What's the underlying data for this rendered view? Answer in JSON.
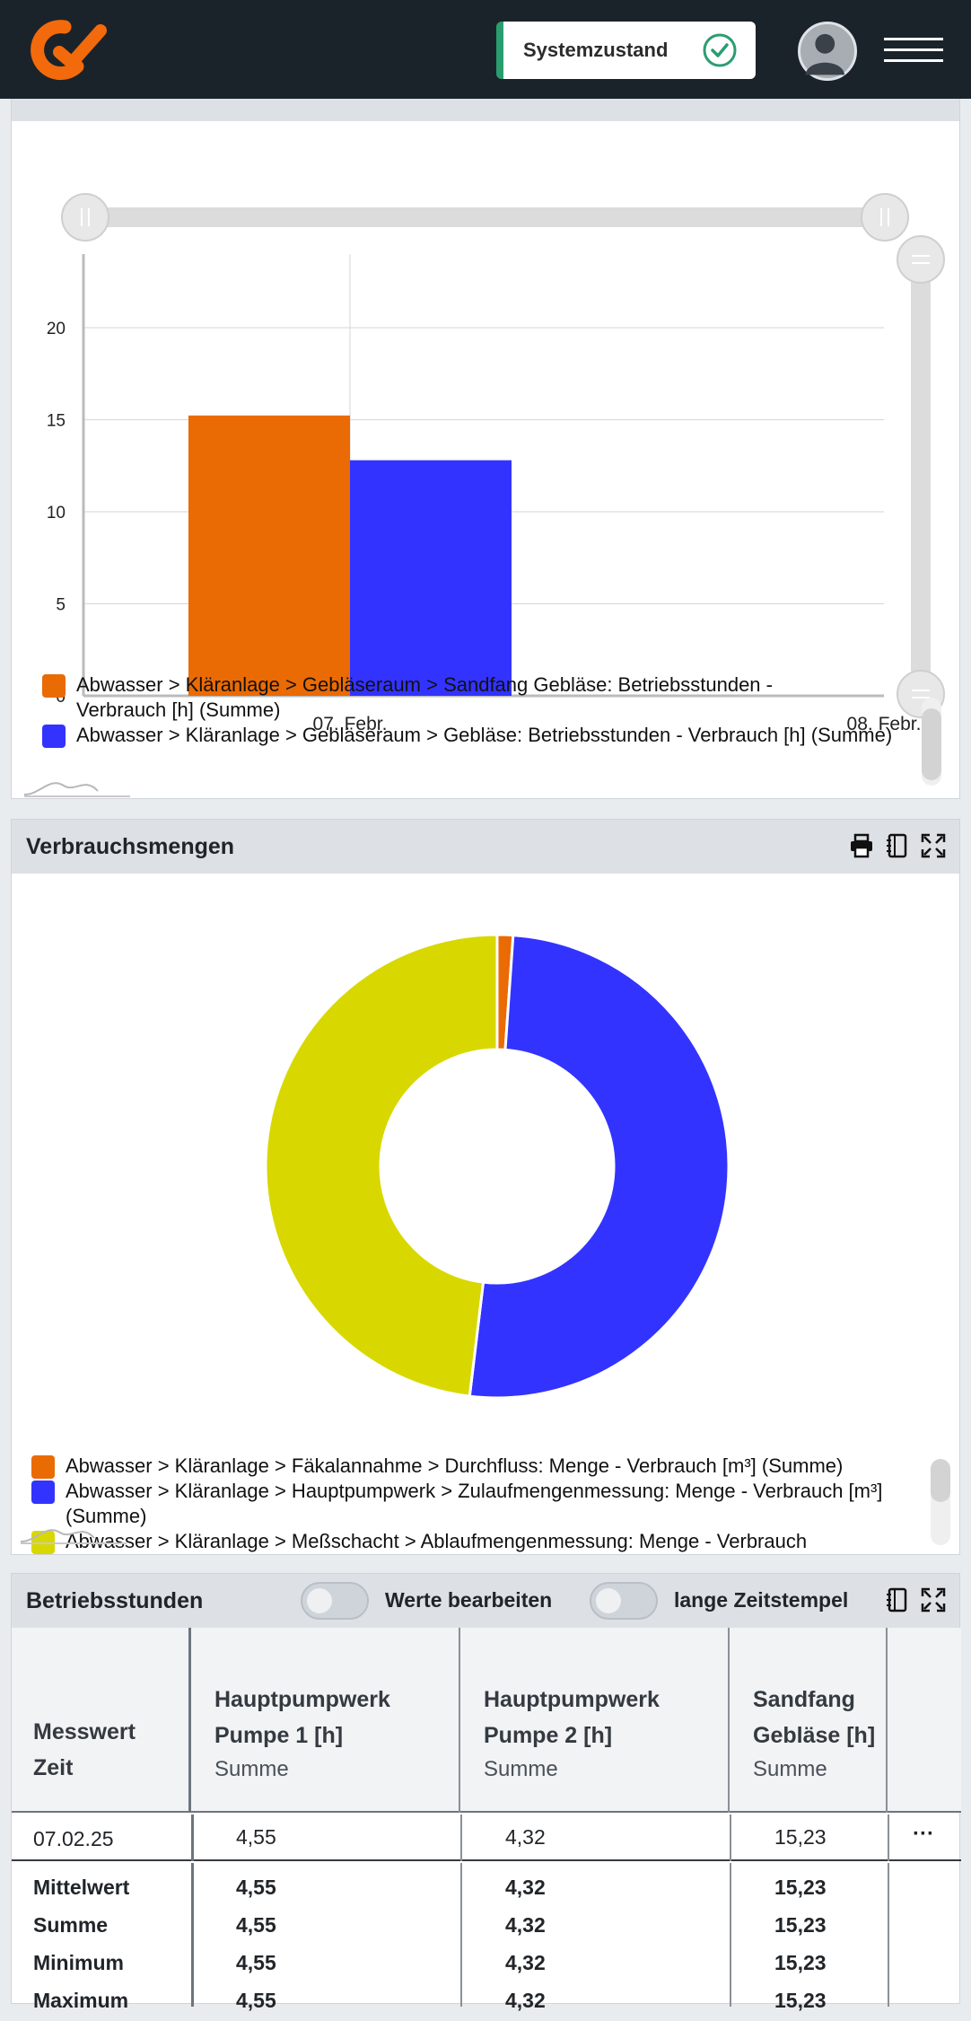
{
  "header": {
    "status_label": "Systemzustand"
  },
  "bar_panel": {
    "legend": [
      {
        "label": "Abwasser > Kläranlage > Gebläseraum > Sandfang Gebläse: Betriebsstunden - Verbrauch [h] (Summe)",
        "color": "#ea6a04"
      },
      {
        "label": "Abwasser > Kläranlage > Gebläseraum > Gebläse: Betriebsstunden - Verbrauch [h] (Summe)",
        "color": "#3333ff"
      }
    ]
  },
  "chart_data": [
    {
      "type": "bar",
      "categories": [
        "07. Febr.",
        "08. Febr."
      ],
      "series": [
        {
          "name": "Abwasser > Kläranlage > Gebläseraum > Sandfang Gebläse: Betriebsstunden - Verbrauch [h] (Summe)",
          "values": [
            15.23,
            null
          ],
          "color": "#ea6a04"
        },
        {
          "name": "Abwasser > Kläranlage > Gebläseraum > Gebläse: Betriebsstunden - Verbrauch [h] (Summe)",
          "values": [
            12.8,
            null
          ],
          "color": "#3333ff"
        }
      ],
      "yticks": [
        0,
        5,
        10,
        15,
        20
      ],
      "ylim": [
        0,
        24
      ],
      "grid": true
    },
    {
      "type": "pie",
      "title": "Verbrauchsmengen",
      "labels": [
        "Abwasser > Kläranlage > Fäkalannahme > Durchfluss: Menge - Verbrauch [m³] (Summe)",
        "Abwasser > Kläranlage > Hauptpumpwerk > Zulaufmengenmessung: Menge - Verbrauch [m³] (Summe)",
        "Abwasser > Kläranlage > Meßschacht > Ablaufmengenmessung: Menge - Verbrauch"
      ],
      "values": [
        1.1,
        50.8,
        48.1
      ],
      "colors": [
        "#ea6a04",
        "#3333ff",
        "#d8d800"
      ],
      "donut": true
    }
  ],
  "pie_panel": {
    "title": "Verbrauchsmengen",
    "legend": [
      {
        "label": "Abwasser > Kläranlage > Fäkalannahme > Durchfluss: Menge - Verbrauch [m³] (Summe)",
        "color": "#ea6a04"
      },
      {
        "label": "Abwasser > Kläranlage > Hauptpumpwerk > Zulaufmengenmessung: Menge - Verbrauch [m³] (Summe)",
        "color": "#3333ff"
      },
      {
        "label": "Abwasser > Kläranlage > Meßschacht > Ablaufmengenmessung: Menge - Verbrauch",
        "color": "#d8d800"
      }
    ]
  },
  "table_panel": {
    "title": "Betriebsstunden",
    "toggle_edit_label": "Werte bearbeiten",
    "toggle_long_ts_label": "lange Zeitstempel",
    "first_col_header": [
      "Messwert",
      "Zeit"
    ],
    "columns": [
      {
        "title": "Hauptpumpwerk Pumpe 1 [h]",
        "agg": "Summe"
      },
      {
        "title": "Hauptpumpwerk Pumpe 2 [h]",
        "agg": "Summe"
      },
      {
        "title": "Sandfang Gebläse [h]",
        "agg": "Summe"
      }
    ],
    "rows": [
      {
        "time": "07.02.25",
        "values": [
          "4,55",
          "4,32",
          "15,23"
        ],
        "menu": "···"
      }
    ],
    "summary": [
      {
        "label": "Mittelwert",
        "values": [
          "4,55",
          "4,32",
          "15,23"
        ]
      },
      {
        "label": "Summe",
        "values": [
          "4,55",
          "4,32",
          "15,23"
        ]
      },
      {
        "label": "Minimum",
        "values": [
          "4,55",
          "4,32",
          "15,23"
        ]
      },
      {
        "label": "Maximum",
        "values": [
          "4,55",
          "4,32",
          "15,23"
        ]
      }
    ]
  }
}
